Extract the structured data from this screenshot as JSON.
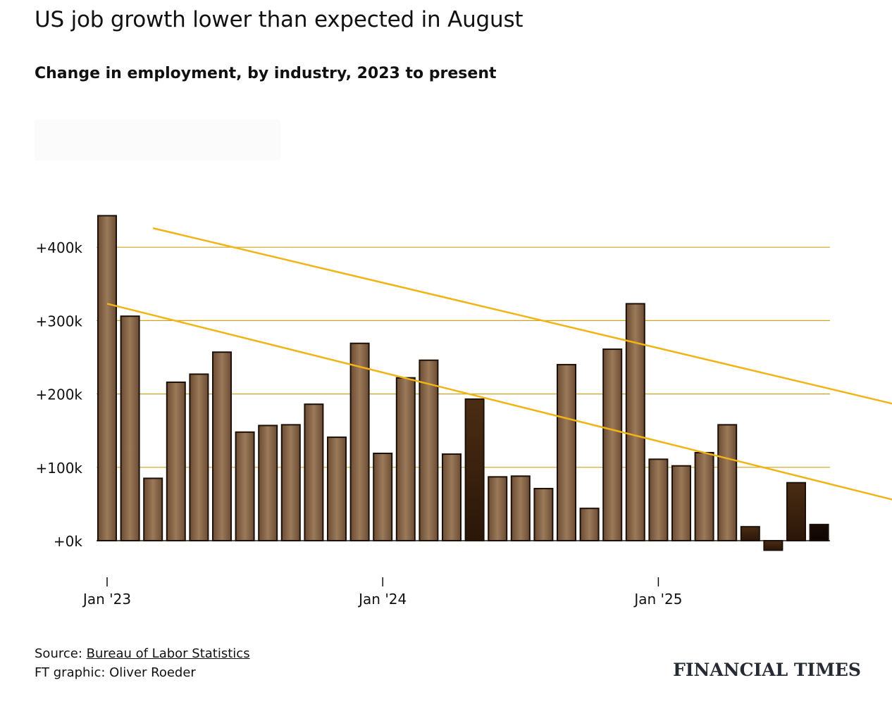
{
  "title": "US job growth lower than expected in August",
  "subtitle": "Change in employment, by industry, 2023 to present",
  "source": {
    "prefix": "Source: ",
    "link_text": "Bureau of Labor Statistics"
  },
  "credit": "FT graphic: Oliver Roeder",
  "logo": "FINANCIAL TIMES",
  "colors": {
    "bar": "#8b6748",
    "bar_dark": "#3d2612",
    "trend": "#f2b315",
    "grid": "#d2a21a",
    "text": "#111111"
  },
  "chart_data": {
    "type": "bar",
    "title": "US job growth lower than expected in August",
    "subtitle": "Change in employment, by industry, 2023 to present",
    "ylim": [
      -30,
      450
    ],
    "yticks": [
      0,
      100,
      200,
      300,
      400
    ],
    "ytick_labels": [
      "+0k",
      "+100k",
      "+200k",
      "+300k",
      "+400k"
    ],
    "xtick_labels": [
      "Jan '23",
      "Jan '24",
      "Jan '25"
    ],
    "xtick_indices": [
      0,
      12,
      24
    ],
    "grid": true,
    "unit": "thousands of jobs",
    "values": [
      443,
      306,
      85,
      216,
      227,
      257,
      148,
      157,
      158,
      186,
      141,
      269,
      119,
      222,
      246,
      118,
      193,
      87,
      88,
      71,
      240,
      44,
      261,
      323,
      111,
      102,
      120,
      158,
      19,
      -13,
      79,
      22
    ],
    "trend_lines": [
      {
        "from": {
          "x": 2,
          "y": 426
        },
        "to": {
          "x": 34.7,
          "y": 183
        }
      },
      {
        "from": {
          "x": 0,
          "y": 323
        },
        "to": {
          "x": 34.7,
          "y": 52
        }
      }
    ]
  }
}
